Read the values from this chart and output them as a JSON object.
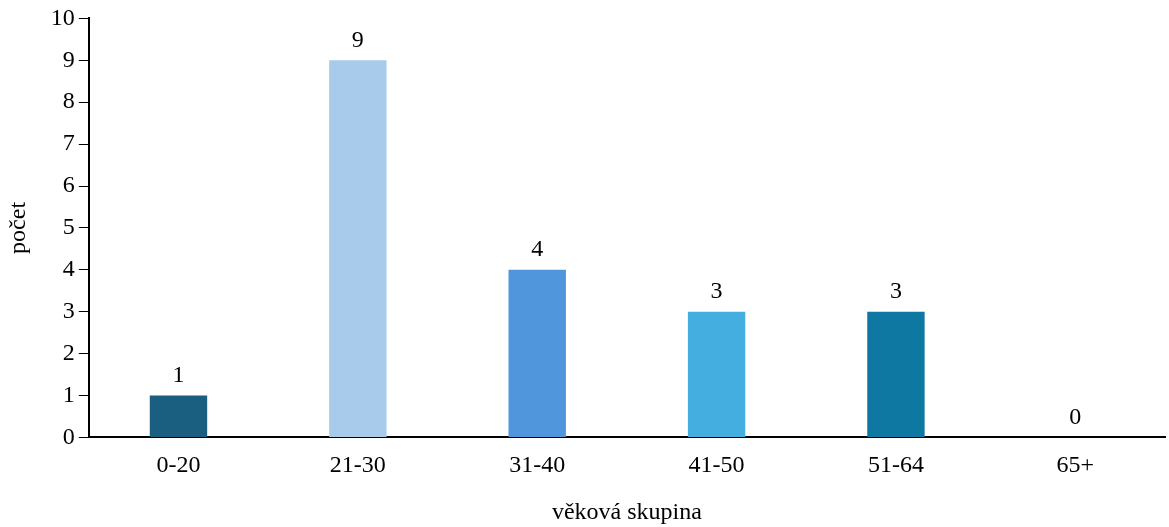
{
  "chart_data": {
    "type": "bar",
    "categories": [
      "0-20",
      "21-30",
      "31-40",
      "41-50",
      "51-64",
      "65+"
    ],
    "values": [
      1,
      9,
      4,
      3,
      3,
      0
    ],
    "colors": [
      "#1a5e80",
      "#a8cbec",
      "#4f96dc",
      "#45aee0",
      "#0e78a3",
      "#2e75b6"
    ],
    "xlabel": "věková skupina",
    "ylabel": "počet",
    "ylim": [
      0,
      10
    ],
    "yticks": [
      0,
      1,
      2,
      3,
      4,
      5,
      6,
      7,
      8,
      9,
      10
    ],
    "grid": false,
    "legend": false,
    "data_labels": true
  }
}
